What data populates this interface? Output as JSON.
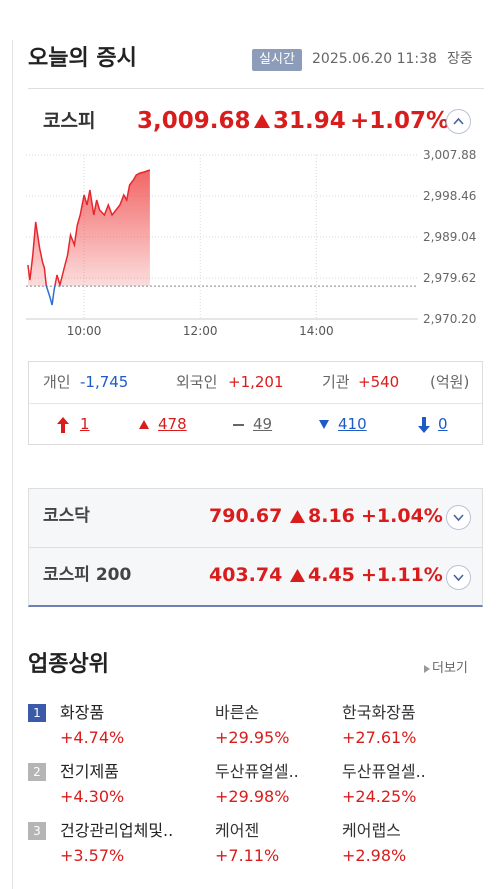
{
  "header": {
    "title": "오늘의 증시",
    "badge": "실시간",
    "datetime": "2025.06.20 11:38",
    "status": "장중"
  },
  "kospi": {
    "name": "코스피",
    "value": "3,009.68",
    "change": "31.94",
    "rate": "+1.07%"
  },
  "chart_data": {
    "type": "line",
    "x": [
      2,
      4,
      7,
      10,
      14,
      17,
      19,
      21,
      23,
      25,
      27,
      29,
      32,
      35,
      39,
      43,
      46,
      50,
      53,
      56,
      60,
      63,
      66,
      70,
      73,
      76,
      81,
      85,
      89,
      93,
      97,
      101,
      104,
      107,
      111,
      114,
      118,
      122,
      128
    ],
    "values": [
      2982.61,
      2979.16,
      2984.9,
      2992.49,
      2986.51,
      2983.3,
      2981.92,
      2977.78,
      2976.4,
      2975.03,
      2973.42,
      2976.86,
      2980.31,
      2978.01,
      2981.46,
      2984.9,
      2989.5,
      2987.2,
      2991.8,
      2994.1,
      2998.69,
      2996.39,
      2999.84,
      2994.1,
      2997.54,
      2995.24,
      2994.1,
      2996.39,
      2994.1,
      2995.24,
      2996.39,
      2998.69,
      2997.54,
      3000.99,
      3002.14,
      3003.29,
      3003.74,
      3003.97,
      3004.43
    ],
    "prev_close": 2977.74,
    "xlim": [
      0,
      405
    ],
    "xticks": [
      {
        "value": 60,
        "label": "10:00"
      },
      {
        "value": 180,
        "label": "12:00"
      },
      {
        "value": 300,
        "label": "14:00"
      }
    ],
    "ylim": [
      2970.2,
      3007.88
    ],
    "yticks": [
      {
        "value": 3007.88,
        "label": "3,007.88"
      },
      {
        "value": 2998.46,
        "label": "2,998.46"
      },
      {
        "value": 2989.04,
        "label": "2,989.04"
      },
      {
        "value": 2979.62,
        "label": "2,979.62"
      },
      {
        "value": 2970.2,
        "label": "2,970.20"
      }
    ],
    "grid": true,
    "up_color": "#e8262d",
    "down_color": "#2f6fd8"
  },
  "investors": {
    "items": [
      {
        "name": "개인",
        "value": "-1,745"
      },
      {
        "name": "외국인",
        "value": "+1,201"
      },
      {
        "name": "기관",
        "value": "+540"
      }
    ],
    "unit": "(억원)"
  },
  "breadth": [
    "1",
    "478",
    "49",
    "410",
    "0"
  ],
  "indices": [
    {
      "name": "코스닥",
      "value": "790.67",
      "change": "8.16",
      "rate": "+1.04%"
    },
    {
      "name": "코스피 200",
      "value": "403.74",
      "change": "4.45",
      "rate": "+1.11%"
    }
  ],
  "sectors": {
    "title": "업종상위",
    "more": "더보기",
    "rows": [
      {
        "rank": "1",
        "name": "화장품",
        "rate": "+4.74%",
        "stocks": [
          {
            "name": "바른손",
            "rate": "+29.95%"
          },
          {
            "name": "한국화장품",
            "rate": "+27.61%"
          }
        ]
      },
      {
        "rank": "2",
        "name": "전기제품",
        "rate": "+4.30%",
        "stocks": [
          {
            "name": "두산퓨얼셀..",
            "rate": "+29.98%"
          },
          {
            "name": "두산퓨얼셀..",
            "rate": "+24.25%"
          }
        ]
      },
      {
        "rank": "3",
        "name": "건강관리업체및..",
        "rate": "+3.57%",
        "stocks": [
          {
            "name": "케어젠",
            "rate": "+7.11%"
          },
          {
            "name": "케어랩스",
            "rate": "+2.98%"
          }
        ]
      }
    ]
  }
}
